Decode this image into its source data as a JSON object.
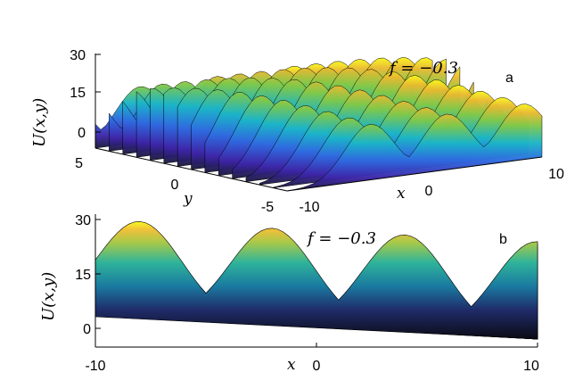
{
  "chart_data": [
    {
      "type": "surface",
      "panel_label": "a",
      "annotation": "f = −0.3",
      "xlabel": "x",
      "ylabel": "y",
      "zlabel": "U(x,y)",
      "xlim": [
        -10,
        10
      ],
      "ylim": [
        -5,
        5
      ],
      "zlim": [
        0,
        30
      ],
      "x_ticks": [
        "-10",
        "0",
        "10"
      ],
      "y_ticks": [
        "5",
        "0",
        "-5"
      ],
      "z_ticks": [
        "30",
        "15",
        "0"
      ],
      "peak_x_positions": [
        -8,
        -2,
        4,
        10
      ],
      "peak_height": 28,
      "colormap": "parula"
    },
    {
      "type": "surface",
      "panel_label": "b",
      "annotation": "f = −0.3",
      "xlabel": "x",
      "zlabel": "U(x,y)",
      "xlim": [
        -10,
        10
      ],
      "zlim": [
        0,
        30
      ],
      "x_ticks": [
        "-10",
        "0",
        "10"
      ],
      "z_ticks": [
        "30",
        "15",
        "0"
      ],
      "peak_x_positions": [
        -8,
        -2,
        4,
        10
      ],
      "peak_height": 28,
      "colormap": "parula"
    }
  ]
}
